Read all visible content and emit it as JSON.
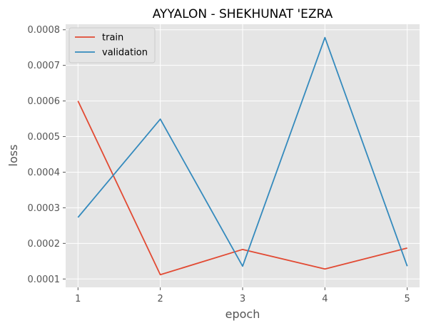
{
  "chart_data": {
    "type": "line",
    "title": "AYYALON - SHEKHUNAT 'EZRA",
    "xlabel": "epoch",
    "ylabel": "loss",
    "x": [
      1,
      2,
      3,
      4,
      5
    ],
    "xlim": [
      0.85,
      5.15
    ],
    "ylim": [
      7.65e-05,
      0.0008155
    ],
    "xticks": [
      "1",
      "2",
      "3",
      "4",
      "5"
    ],
    "yticks": [
      "0.0001",
      "0.0002",
      "0.0003",
      "0.0004",
      "0.0005",
      "0.0006",
      "0.0007",
      "0.0008"
    ],
    "grid": true,
    "legend_position": "top-left",
    "series": [
      {
        "name": "train",
        "color": "#e24a33",
        "values": [
          0.0006,
          0.000112,
          0.000183,
          0.000128,
          0.000187
        ]
      },
      {
        "name": "validation",
        "color": "#348abd",
        "values": [
          0.000273,
          0.000549,
          0.000136,
          0.000778,
          0.000136
        ]
      }
    ],
    "colors": {
      "plot_background": "#e5e5e5",
      "grid": "#ffffff",
      "tick": "#555555"
    }
  }
}
